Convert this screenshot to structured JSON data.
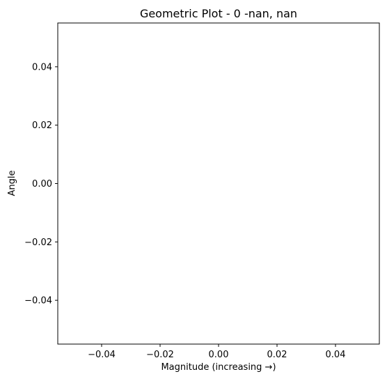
{
  "chart_data": {
    "type": "scatter",
    "title": "Geometric Plot - 0 -nan, nan",
    "xlabel": "Magnitude (increasing →)",
    "ylabel": "Angle",
    "xlim": [
      -0.055,
      0.055
    ],
    "ylim": [
      -0.055,
      0.055
    ],
    "xticks": [
      -0.04,
      -0.02,
      0.0,
      0.02,
      0.04
    ],
    "yticks": [
      -0.04,
      -0.02,
      0.0,
      0.02,
      0.04
    ],
    "xtick_labels": [
      "−0.04",
      "−0.02",
      "0.00",
      "0.02",
      "0.04"
    ],
    "ytick_labels": [
      "−0.04",
      "−0.02",
      "0.00",
      "0.02",
      "0.04"
    ],
    "grid": false,
    "series": []
  }
}
